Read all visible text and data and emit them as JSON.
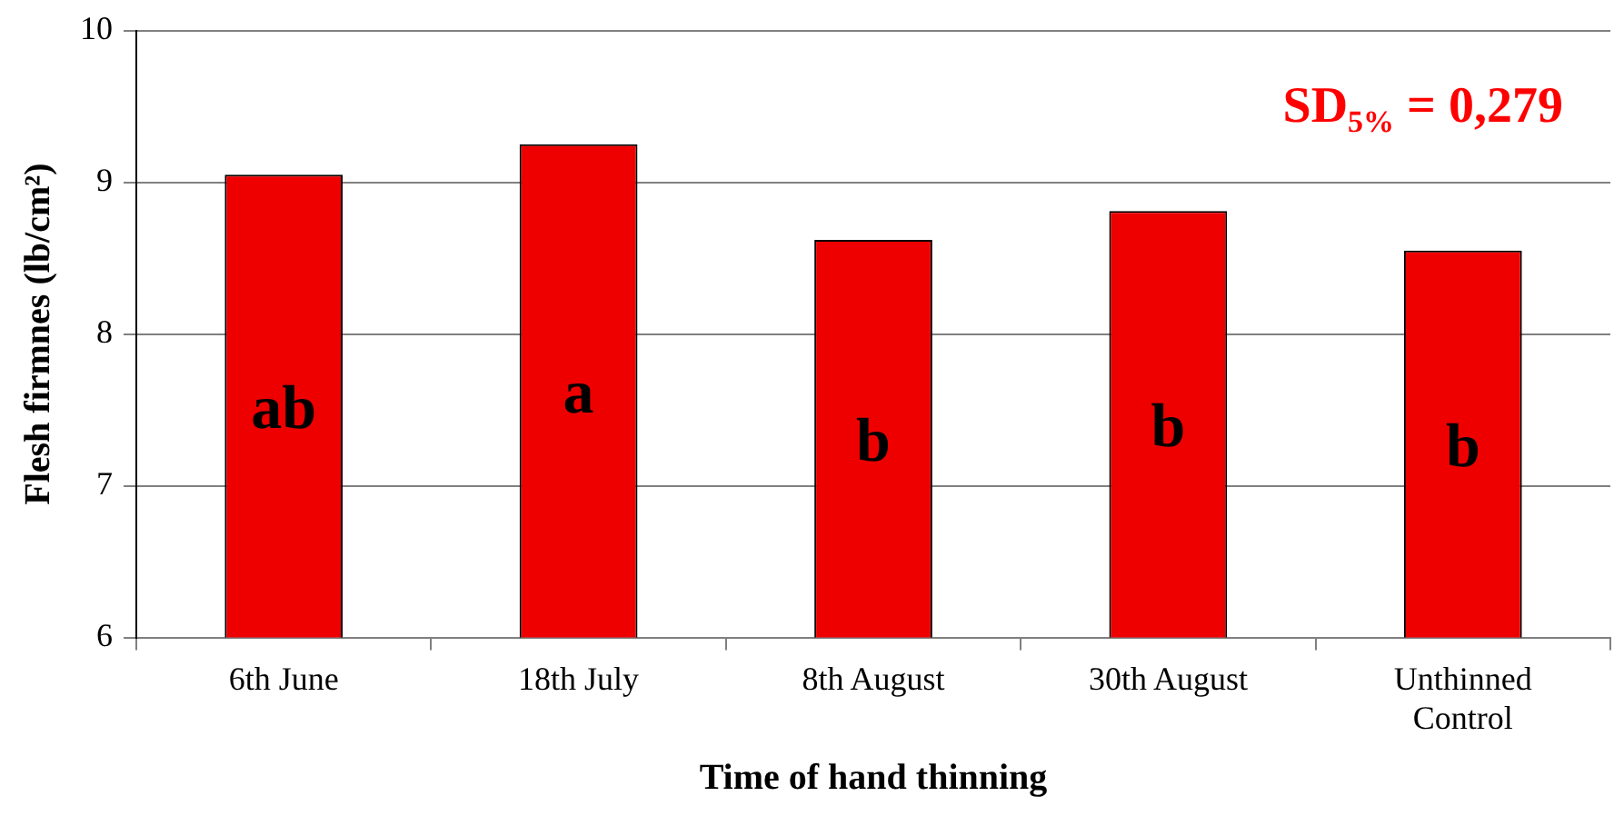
{
  "chart_data": {
    "type": "bar",
    "xlabel": "Time of hand thinning",
    "ylabel": "Flesh firmnes (lb/cm²)",
    "categories": [
      "6th June",
      "18th July",
      "8th August",
      "30th August",
      "Unthinned Control"
    ],
    "values": [
      9.05,
      9.25,
      8.62,
      8.81,
      8.55
    ],
    "color": "#ee0000",
    "ylim": [
      6,
      10
    ],
    "yticks": [
      6,
      7,
      8,
      9,
      10
    ],
    "grid": "y",
    "legend": false,
    "annotations": [
      "SD$_{5%}$ = 0,279",
      "ab",
      "a",
      "b",
      "b",
      "b"
    ]
  }
}
